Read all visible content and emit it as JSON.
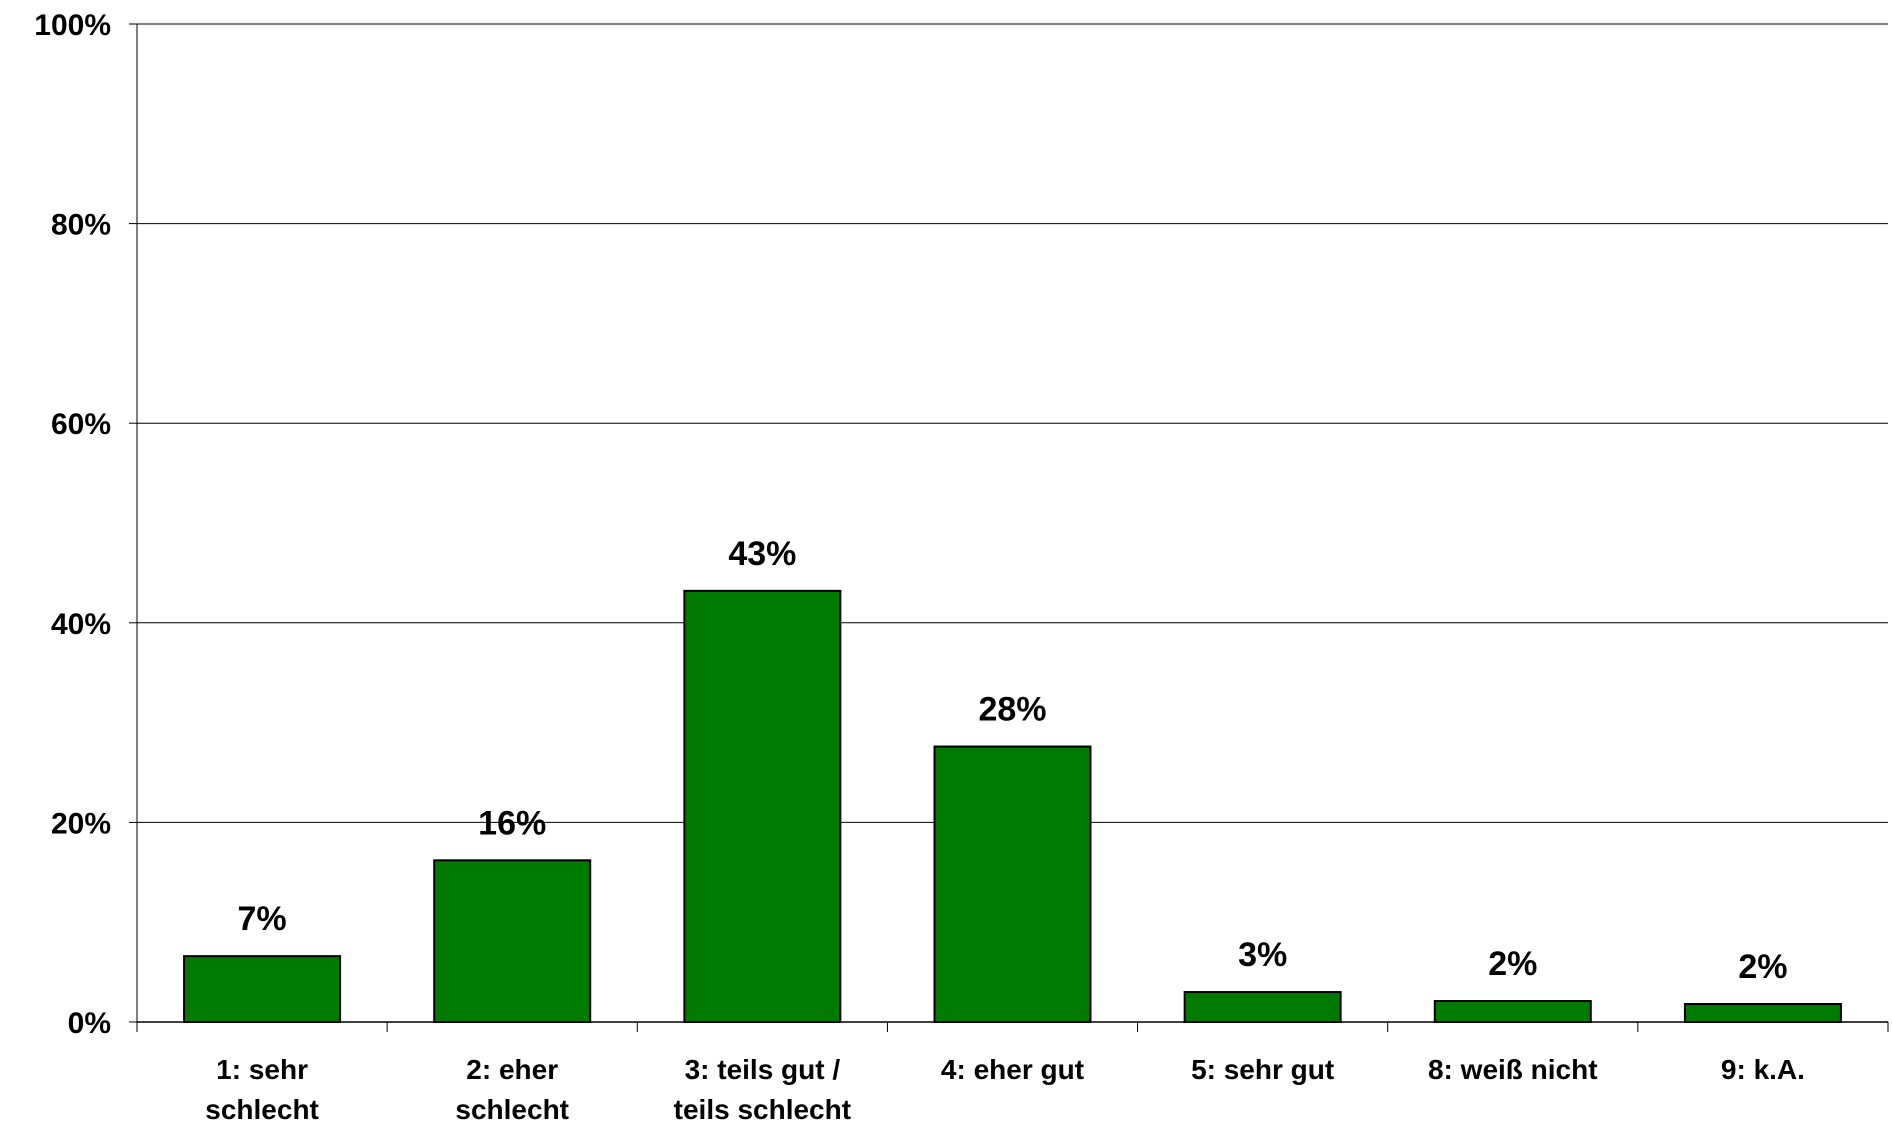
{
  "chart_data": {
    "type": "bar",
    "categories": [
      [
        "1: sehr",
        "schlecht"
      ],
      [
        "2: eher",
        "schlecht"
      ],
      [
        "3: teils gut /",
        "teils schlecht"
      ],
      [
        "4: eher gut"
      ],
      [
        "5: sehr gut"
      ],
      [
        "8: weiß nicht"
      ],
      [
        "9: k.A."
      ]
    ],
    "values": [
      6.6,
      16.2,
      43.2,
      27.6,
      3.0,
      2.1,
      1.8
    ],
    "data_labels": [
      "7%",
      "16%",
      "43%",
      "28%",
      "3%",
      "2%",
      "2%"
    ],
    "ylim": [
      0,
      100
    ],
    "y_ticks": [
      0,
      20,
      40,
      60,
      80,
      100
    ],
    "y_tick_labels": [
      "0%",
      "20%",
      "40%",
      "60%",
      "80%",
      "100%"
    ],
    "grid": true,
    "bar_color": "#007a00"
  }
}
